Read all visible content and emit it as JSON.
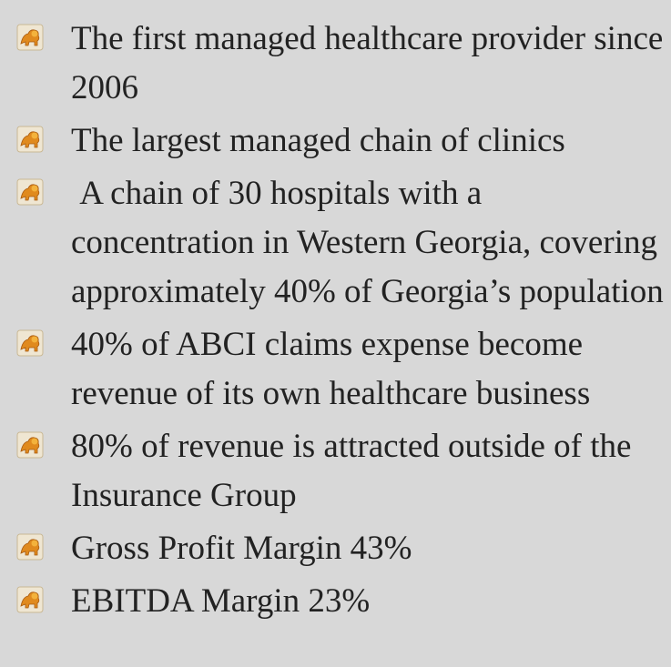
{
  "bullets": [
    "The first managed healthcare provider since 2006",
    "The largest managed chain of clinics",
    " A chain of 30 hospitals with a concentration in Western Georgia, covering approximately 40% of Georgia’s population",
    "40% of ABCI claims expense become revenue of its own healthcare business",
    "80% of revenue is attracted outside of the Insurance Group",
    "Gross Profit Margin 43%",
    "EBITDA Margin 23%"
  ]
}
